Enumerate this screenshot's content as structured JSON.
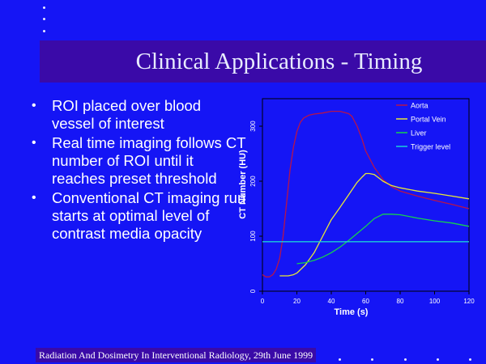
{
  "slide": {
    "title": "Clinical Applications - Timing",
    "bullets": [
      "ROI placed over blood vessel of interest",
      "Real time imaging follows CT number of ROI until it reaches preset threshold",
      "Conventional CT imaging run starts at optimal level of contrast media opacity"
    ],
    "bullet_marker": "•",
    "footer": "Radiation And Dosimetry In Interventional Radiology, 29th June 1999"
  },
  "chart_data": {
    "type": "line",
    "title": "",
    "xlabel": "Time (s)",
    "ylabel": "CT Number (HU)",
    "xlim": [
      0,
      120
    ],
    "ylim": [
      0,
      350
    ],
    "xticks": [
      0,
      20,
      40,
      60,
      80,
      100,
      120
    ],
    "yticks": [
      0,
      100,
      200,
      300
    ],
    "legend_position": "top-right",
    "grid": false,
    "series": [
      {
        "name": "Aorta",
        "color": "#b8144a",
        "x": [
          0,
          2,
          4,
          6,
          8,
          10,
          12,
          14,
          16,
          18,
          20,
          22,
          24,
          27,
          30,
          35,
          40,
          45,
          50,
          52,
          55,
          58,
          60,
          65,
          70,
          75,
          80,
          90,
          100,
          110,
          120
        ],
        "y": [
          30,
          26,
          26,
          30,
          40,
          60,
          100,
          160,
          220,
          262,
          290,
          307,
          315,
          320,
          322,
          324,
          327,
          327,
          323,
          318,
          300,
          275,
          255,
          225,
          203,
          190,
          182,
          173,
          165,
          158,
          150
        ]
      },
      {
        "name": "Portal Vein",
        "color": "#e8e836",
        "x": [
          10,
          15,
          18,
          20,
          25,
          30,
          35,
          40,
          45,
          50,
          55,
          58,
          60,
          62,
          65,
          68,
          70,
          75,
          80,
          90,
          100,
          110,
          120
        ],
        "y": [
          28,
          28,
          30,
          33,
          48,
          70,
          100,
          130,
          152,
          175,
          198,
          208,
          214,
          214,
          212,
          205,
          200,
          192,
          188,
          182,
          178,
          173,
          168
        ]
      },
      {
        "name": "Liver",
        "color": "#16d24e",
        "x": [
          20,
          25,
          30,
          35,
          40,
          45,
          50,
          55,
          60,
          65,
          70,
          75,
          80,
          90,
          100,
          110,
          120
        ],
        "y": [
          50,
          52,
          56,
          62,
          70,
          80,
          92,
          105,
          118,
          132,
          140,
          140,
          139,
          133,
          128,
          124,
          118
        ]
      },
      {
        "name": "Trigger level",
        "color": "#1ad0d8",
        "x": [
          0,
          120
        ],
        "y": [
          90,
          90
        ]
      }
    ]
  }
}
